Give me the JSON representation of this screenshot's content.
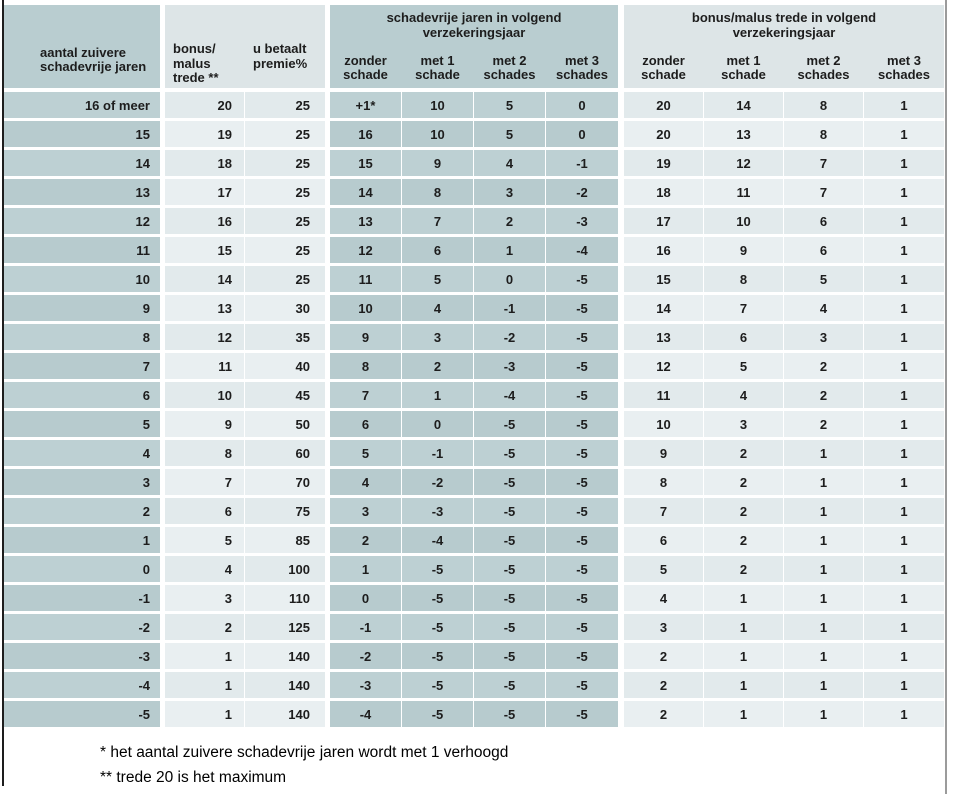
{
  "colors": {
    "teal-header": "#b9cdd0",
    "light-header": "#dde5e7",
    "teal-row-even": "#bdd0d3",
    "teal-row-odd": "#b7cbce",
    "light-row-even": "#e2eaec",
    "light-row-odd": "#e9eff1"
  },
  "table": {
    "header": {
      "col1": "aantal zuivere\nschadevrije jaren",
      "col2": "bonus/\nmalus\ntrede **",
      "col3": "u betaalt\npremie%",
      "groupA": "schadevrije jaren in volgend\nverzekeringsjaar",
      "groupB": "bonus/malus trede in volgend\nverzekeringsjaar",
      "sub": [
        "zonder\nschade",
        "met 1\nschade",
        "met 2\nschades",
        "met 3\nschades"
      ]
    },
    "column_ids": [
      "aantal-zuivere-schadevrije-jaren",
      "bonus-malus-trede",
      "u-betaalt-premie-pct",
      "schadevrije-jaren-zonder-schade",
      "schadevrije-jaren-met-1-schade",
      "schadevrije-jaren-met-2-schades",
      "schadevrije-jaren-met-3-schades",
      "trede-zonder-schade",
      "trede-met-1-schade",
      "trede-met-2-schades",
      "trede-met-3-schades"
    ],
    "rows": [
      [
        "16 of meer",
        "20",
        "25",
        "+1*",
        "10",
        "5",
        "0",
        "20",
        "14",
        "8",
        "1"
      ],
      [
        "15",
        "19",
        "25",
        "16",
        "10",
        "5",
        "0",
        "20",
        "13",
        "8",
        "1"
      ],
      [
        "14",
        "18",
        "25",
        "15",
        "9",
        "4",
        "-1",
        "19",
        "12",
        "7",
        "1"
      ],
      [
        "13",
        "17",
        "25",
        "14",
        "8",
        "3",
        "-2",
        "18",
        "11",
        "7",
        "1"
      ],
      [
        "12",
        "16",
        "25",
        "13",
        "7",
        "2",
        "-3",
        "17",
        "10",
        "6",
        "1"
      ],
      [
        "11",
        "15",
        "25",
        "12",
        "6",
        "1",
        "-4",
        "16",
        "9",
        "6",
        "1"
      ],
      [
        "10",
        "14",
        "25",
        "11",
        "5",
        "0",
        "-5",
        "15",
        "8",
        "5",
        "1"
      ],
      [
        "9",
        "13",
        "30",
        "10",
        "4",
        "-1",
        "-5",
        "14",
        "7",
        "4",
        "1"
      ],
      [
        "8",
        "12",
        "35",
        "9",
        "3",
        "-2",
        "-5",
        "13",
        "6",
        "3",
        "1"
      ],
      [
        "7",
        "11",
        "40",
        "8",
        "2",
        "-3",
        "-5",
        "12",
        "5",
        "2",
        "1"
      ],
      [
        "6",
        "10",
        "45",
        "7",
        "1",
        "-4",
        "-5",
        "11",
        "4",
        "2",
        "1"
      ],
      [
        "5",
        "9",
        "50",
        "6",
        "0",
        "-5",
        "-5",
        "10",
        "3",
        "2",
        "1"
      ],
      [
        "4",
        "8",
        "60",
        "5",
        "-1",
        "-5",
        "-5",
        "9",
        "2",
        "1",
        "1"
      ],
      [
        "3",
        "7",
        "70",
        "4",
        "-2",
        "-5",
        "-5",
        "8",
        "2",
        "1",
        "1"
      ],
      [
        "2",
        "6",
        "75",
        "3",
        "-3",
        "-5",
        "-5",
        "7",
        "2",
        "1",
        "1"
      ],
      [
        "1",
        "5",
        "85",
        "2",
        "-4",
        "-5",
        "-5",
        "6",
        "2",
        "1",
        "1"
      ],
      [
        "0",
        "4",
        "100",
        "1",
        "-5",
        "-5",
        "-5",
        "5",
        "2",
        "1",
        "1"
      ],
      [
        "-1",
        "3",
        "110",
        "0",
        "-5",
        "-5",
        "-5",
        "4",
        "1",
        "1",
        "1"
      ],
      [
        "-2",
        "2",
        "125",
        "-1",
        "-5",
        "-5",
        "-5",
        "3",
        "1",
        "1",
        "1"
      ],
      [
        "-3",
        "1",
        "140",
        "-2",
        "-5",
        "-5",
        "-5",
        "2",
        "1",
        "1",
        "1"
      ],
      [
        "-4",
        "1",
        "140",
        "-3",
        "-5",
        "-5",
        "-5",
        "2",
        "1",
        "1",
        "1"
      ],
      [
        "-5",
        "1",
        "140",
        "-4",
        "-5",
        "-5",
        "-5",
        "2",
        "1",
        "1",
        "1"
      ]
    ]
  },
  "footnotes": [
    "* het aantal zuivere schadevrije jaren wordt met 1 verhoogd",
    "** trede 20 is het maximum"
  ]
}
